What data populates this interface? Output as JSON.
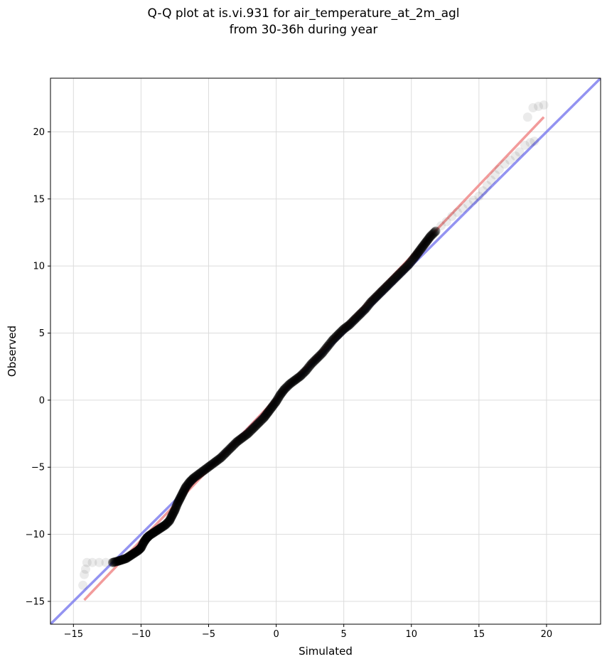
{
  "chart_data": {
    "type": "scatter",
    "title": "Q-Q plot at is.vi.931 for air_temperature_at_2m_agl",
    "subtitle": "from 30-36h during year",
    "xlabel": "Simulated",
    "ylabel": "Observed",
    "xlim": [
      -16.7,
      24.0
    ],
    "ylim": [
      -16.7,
      24.0
    ],
    "xticks": [
      -15,
      -10,
      -5,
      0,
      5,
      10,
      15,
      20
    ],
    "yticks": [
      -15,
      -10,
      -5,
      0,
      5,
      10,
      15,
      20
    ],
    "xtick_labels": [
      "−15",
      "−10",
      "−5",
      "0",
      "5",
      "10",
      "15",
      "20"
    ],
    "ytick_labels": [
      "−15",
      "−10",
      "−5",
      "0",
      "5",
      "10",
      "15",
      "20"
    ],
    "grid": true,
    "reference_line": {
      "slope": 1,
      "intercept": 0,
      "color": "#8080ee"
    },
    "fit_line": {
      "x": [
        -14.2,
        19.8
      ],
      "y": [
        -14.9,
        21.1
      ],
      "color": "#f08a8a"
    },
    "marker_color": "#000000",
    "points": [
      [
        -14.3,
        -13.8
      ],
      [
        -14.2,
        -13.0
      ],
      [
        -14.1,
        -12.6
      ],
      [
        -14.0,
        -12.1
      ],
      [
        -13.6,
        -12.1
      ],
      [
        -13.1,
        -12.1
      ],
      [
        -12.6,
        -12.1
      ],
      [
        -12.1,
        -12.1
      ],
      [
        -11.7,
        -12.0
      ],
      [
        -11.4,
        -11.9
      ],
      [
        -11.1,
        -11.8
      ],
      [
        -10.8,
        -11.6
      ],
      [
        -10.5,
        -11.4
      ],
      [
        -10.2,
        -11.2
      ],
      [
        -10.0,
        -11.0
      ],
      [
        -9.8,
        -10.6
      ],
      [
        -9.6,
        -10.3
      ],
      [
        -9.4,
        -10.1
      ],
      [
        -9.1,
        -9.9
      ],
      [
        -8.8,
        -9.7
      ],
      [
        -8.5,
        -9.5
      ],
      [
        -8.2,
        -9.3
      ],
      [
        -7.9,
        -9.0
      ],
      [
        -7.7,
        -8.6
      ],
      [
        -7.5,
        -8.2
      ],
      [
        -7.3,
        -7.7
      ],
      [
        -7.1,
        -7.3
      ],
      [
        -6.9,
        -6.9
      ],
      [
        -6.7,
        -6.5
      ],
      [
        -6.4,
        -6.1
      ],
      [
        -6.1,
        -5.8
      ],
      [
        -5.7,
        -5.5
      ],
      [
        -5.3,
        -5.2
      ],
      [
        -4.9,
        -4.9
      ],
      [
        -4.5,
        -4.6
      ],
      [
        -4.1,
        -4.3
      ],
      [
        -3.7,
        -3.9
      ],
      [
        -3.3,
        -3.5
      ],
      [
        -2.9,
        -3.1
      ],
      [
        -2.5,
        -2.8
      ],
      [
        -2.1,
        -2.5
      ],
      [
        -1.7,
        -2.1
      ],
      [
        -1.3,
        -1.7
      ],
      [
        -0.9,
        -1.3
      ],
      [
        -0.6,
        -0.9
      ],
      [
        -0.3,
        -0.5
      ],
      [
        0.0,
        -0.1
      ],
      [
        0.3,
        0.4
      ],
      [
        0.6,
        0.8
      ],
      [
        1.0,
        1.2
      ],
      [
        1.4,
        1.5
      ],
      [
        1.8,
        1.8
      ],
      [
        2.2,
        2.2
      ],
      [
        2.6,
        2.7
      ],
      [
        3.0,
        3.1
      ],
      [
        3.4,
        3.5
      ],
      [
        3.8,
        4.0
      ],
      [
        4.2,
        4.5
      ],
      [
        4.6,
        4.9
      ],
      [
        5.0,
        5.3
      ],
      [
        5.4,
        5.6
      ],
      [
        5.8,
        6.0
      ],
      [
        6.2,
        6.4
      ],
      [
        6.6,
        6.8
      ],
      [
        7.0,
        7.3
      ],
      [
        7.4,
        7.7
      ],
      [
        7.8,
        8.1
      ],
      [
        8.2,
        8.5
      ],
      [
        8.6,
        8.9
      ],
      [
        9.0,
        9.3
      ],
      [
        9.4,
        9.7
      ],
      [
        9.8,
        10.1
      ],
      [
        10.2,
        10.6
      ],
      [
        10.5,
        11.0
      ],
      [
        10.8,
        11.4
      ],
      [
        11.1,
        11.8
      ],
      [
        11.4,
        12.2
      ],
      [
        11.8,
        12.6
      ],
      [
        12.2,
        13.0
      ],
      [
        12.6,
        13.3
      ],
      [
        13.0,
        13.7
      ],
      [
        13.4,
        14.0
      ],
      [
        13.8,
        14.3
      ],
      [
        14.2,
        14.6
      ],
      [
        14.6,
        14.9
      ],
      [
        15.0,
        15.2
      ],
      [
        15.3,
        15.6
      ],
      [
        15.6,
        16.0
      ],
      [
        15.9,
        16.4
      ],
      [
        16.2,
        16.8
      ],
      [
        16.5,
        17.2
      ],
      [
        16.9,
        17.6
      ],
      [
        17.3,
        17.9
      ],
      [
        17.7,
        18.2
      ],
      [
        18.0,
        18.5
      ],
      [
        18.4,
        19.0
      ],
      [
        18.8,
        19.2
      ],
      [
        19.1,
        19.3
      ],
      [
        18.6,
        21.1
      ],
      [
        19.0,
        21.8
      ],
      [
        19.4,
        21.9
      ],
      [
        19.8,
        22.0
      ]
    ]
  }
}
